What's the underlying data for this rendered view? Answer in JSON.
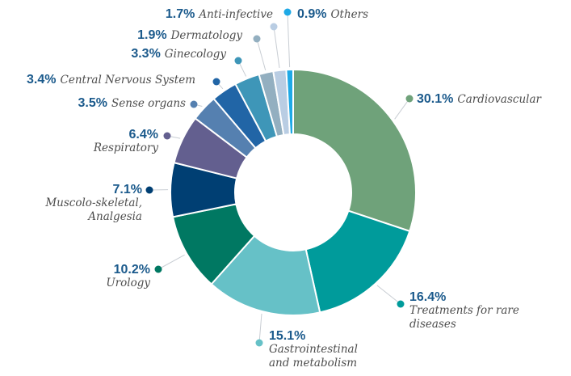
{
  "chart_data": {
    "type": "donut",
    "categories": [
      "Cardiovascular",
      "Treatments for rare diseases",
      "Gastrointestinal and metabolism",
      "Urology",
      "Muscolo-skeletal, Analgesia",
      "Respiratory",
      "Sense organs",
      "Central Nervous System",
      "Ginecology",
      "Dermatology",
      "Anti-infective",
      "Others"
    ],
    "values": [
      30.1,
      16.4,
      15.1,
      10.2,
      7.1,
      6.4,
      3.5,
      3.4,
      3.3,
      1.9,
      1.7,
      0.9
    ],
    "value_labels": [
      "30.1%",
      "16.4%",
      "15.1%",
      "10.2%",
      "7.1%",
      "6.4%",
      "3.5%",
      "3.4%",
      "3.3%",
      "1.9%",
      "1.7%",
      "0.9%"
    ],
    "colors": [
      "#6fa27a",
      "#009b9b",
      "#66c1c7",
      "#007862",
      "#003f73",
      "#635f8f",
      "#5580b0",
      "#2165a6",
      "#3e96b8",
      "#93afc0",
      "#b9cde3",
      "#1ea9e6"
    ]
  }
}
